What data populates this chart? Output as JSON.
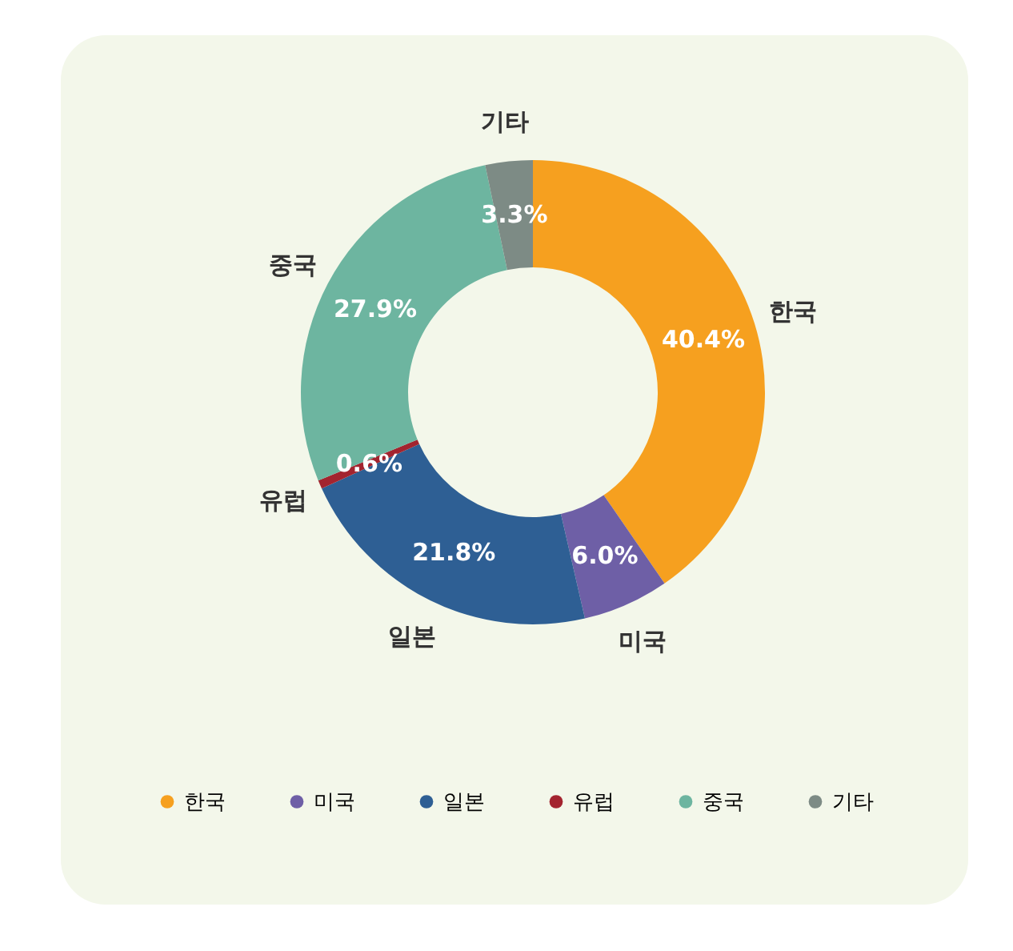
{
  "chart_data": {
    "type": "donut",
    "categories": [
      "한국",
      "미국",
      "일본",
      "유럽",
      "중국",
      "기타"
    ],
    "values": [
      40.4,
      6.0,
      21.8,
      0.6,
      27.9,
      3.3
    ],
    "value_labels": [
      "40.4%",
      "6.0%",
      "21.8%",
      "0.6%",
      "27.9%",
      "3.3%"
    ],
    "colors": [
      "#f6a01f",
      "#6e5fa6",
      "#2e5f94",
      "#a3242f",
      "#6db5a0",
      "#7d8b85"
    ],
    "legend": "bottom"
  }
}
